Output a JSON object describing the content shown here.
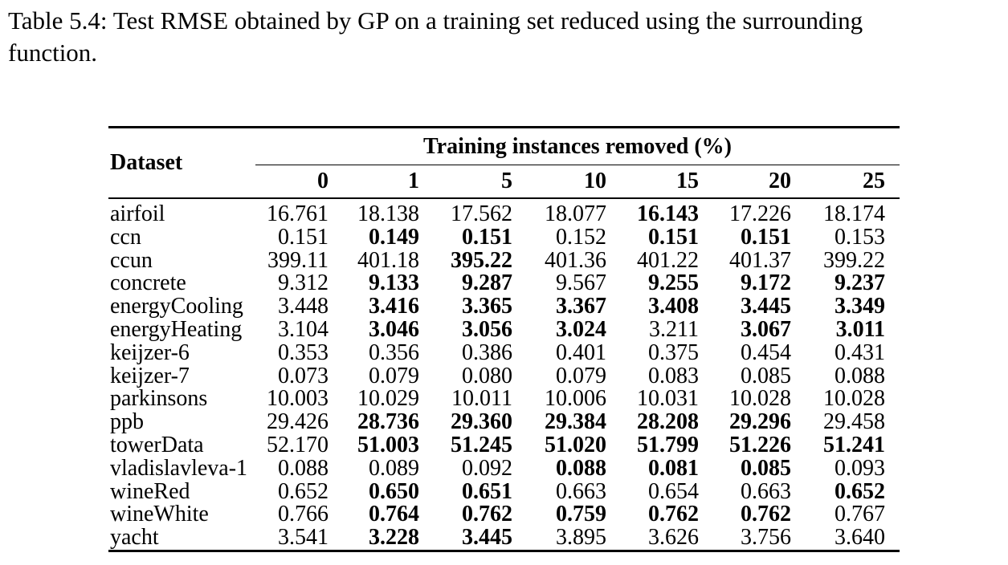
{
  "caption": {
    "lines": [
      "Table 5.4: Test RMSE obtained by GP on a training set reduced using the surrounding",
      "function."
    ]
  },
  "table": {
    "corner_header": "Dataset",
    "group_header": "Training instances removed (%)",
    "columns": [
      "0",
      "1",
      "5",
      "10",
      "15",
      "20",
      "25"
    ],
    "rows": [
      {
        "dataset": "airfoil",
        "values": [
          "16.761",
          "18.138",
          "17.562",
          "18.077",
          "16.143",
          "17.226",
          "18.174"
        ],
        "bold": [
          false,
          false,
          false,
          false,
          true,
          false,
          false
        ]
      },
      {
        "dataset": "ccn",
        "values": [
          "0.151",
          "0.149",
          "0.151",
          "0.152",
          "0.151",
          "0.151",
          "0.153"
        ],
        "bold": [
          false,
          true,
          true,
          false,
          true,
          true,
          false
        ]
      },
      {
        "dataset": "ccun",
        "values": [
          "399.11",
          "401.18",
          "395.22",
          "401.36",
          "401.22",
          "401.37",
          "399.22"
        ],
        "bold": [
          false,
          false,
          true,
          false,
          false,
          false,
          false
        ]
      },
      {
        "dataset": "concrete",
        "values": [
          "9.312",
          "9.133",
          "9.287",
          "9.567",
          "9.255",
          "9.172",
          "9.237"
        ],
        "bold": [
          false,
          true,
          true,
          false,
          true,
          true,
          true
        ]
      },
      {
        "dataset": "energyCooling",
        "values": [
          "3.448",
          "3.416",
          "3.365",
          "3.367",
          "3.408",
          "3.445",
          "3.349"
        ],
        "bold": [
          false,
          true,
          true,
          true,
          true,
          true,
          true
        ]
      },
      {
        "dataset": "energyHeating",
        "values": [
          "3.104",
          "3.046",
          "3.056",
          "3.024",
          "3.211",
          "3.067",
          "3.011"
        ],
        "bold": [
          false,
          true,
          true,
          true,
          false,
          true,
          true
        ]
      },
      {
        "dataset": "keijzer-6",
        "values": [
          "0.353",
          "0.356",
          "0.386",
          "0.401",
          "0.375",
          "0.454",
          "0.431"
        ],
        "bold": [
          false,
          false,
          false,
          false,
          false,
          false,
          false
        ]
      },
      {
        "dataset": "keijzer-7",
        "values": [
          "0.073",
          "0.079",
          "0.080",
          "0.079",
          "0.083",
          "0.085",
          "0.088"
        ],
        "bold": [
          false,
          false,
          false,
          false,
          false,
          false,
          false
        ]
      },
      {
        "dataset": "parkinsons",
        "values": [
          "10.003",
          "10.029",
          "10.011",
          "10.006",
          "10.031",
          "10.028",
          "10.028"
        ],
        "bold": [
          false,
          false,
          false,
          false,
          false,
          false,
          false
        ]
      },
      {
        "dataset": "ppb",
        "values": [
          "29.426",
          "28.736",
          "29.360",
          "29.384",
          "28.208",
          "29.296",
          "29.458"
        ],
        "bold": [
          false,
          true,
          true,
          true,
          true,
          true,
          false
        ]
      },
      {
        "dataset": "towerData",
        "values": [
          "52.170",
          "51.003",
          "51.245",
          "51.020",
          "51.799",
          "51.226",
          "51.241"
        ],
        "bold": [
          false,
          true,
          true,
          true,
          true,
          true,
          true
        ]
      },
      {
        "dataset": "vladislavleva-1",
        "values": [
          "0.088",
          "0.089",
          "0.092",
          "0.088",
          "0.081",
          "0.085",
          "0.093"
        ],
        "bold": [
          false,
          false,
          false,
          true,
          true,
          true,
          false
        ]
      },
      {
        "dataset": "wineRed",
        "values": [
          "0.652",
          "0.650",
          "0.651",
          "0.663",
          "0.654",
          "0.663",
          "0.652"
        ],
        "bold": [
          false,
          true,
          true,
          false,
          false,
          false,
          true
        ]
      },
      {
        "dataset": "wineWhite",
        "values": [
          "0.766",
          "0.764",
          "0.762",
          "0.759",
          "0.762",
          "0.762",
          "0.767"
        ],
        "bold": [
          false,
          true,
          true,
          true,
          true,
          true,
          false
        ]
      },
      {
        "dataset": "yacht",
        "values": [
          "3.541",
          "3.228",
          "3.445",
          "3.895",
          "3.626",
          "3.756",
          "3.640"
        ],
        "bold": [
          false,
          true,
          true,
          false,
          false,
          false,
          false
        ]
      }
    ]
  },
  "colors": {
    "text": "#000000",
    "background": "#ffffff",
    "rule": "#000000"
  }
}
